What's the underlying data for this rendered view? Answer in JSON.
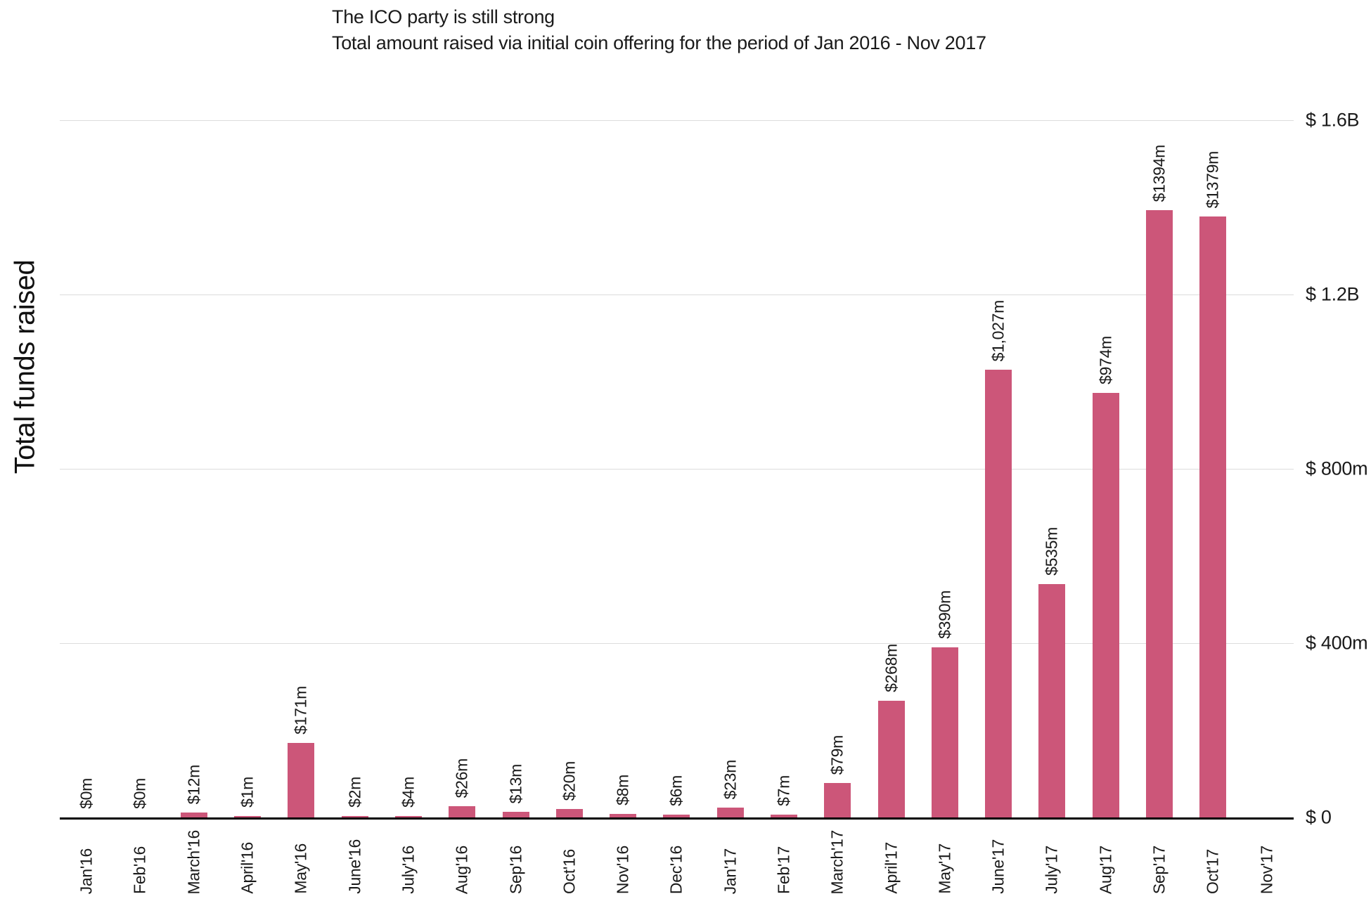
{
  "header": {
    "title": "The ICO party is still strong",
    "subtitle": "Total amount raised via initial coin offering for the period of Jan 2016 - Nov 2017"
  },
  "chart_data": {
    "type": "bar",
    "title": "The ICO party is still strong",
    "subtitle": "Total amount raised via initial coin offering for the period of Jan 2016 - Nov 2017",
    "ylabel": "Total funds raised",
    "xlabel": "",
    "unit": "USD millions",
    "categories": [
      "Jan'16",
      "Feb'16",
      "March'16",
      "April'16",
      "May'16",
      "June'16",
      "July'16",
      "Aug'16",
      "Sep'16",
      "Oct'16",
      "Nov'16",
      "Dec'16",
      "Jan'17",
      "Feb'17",
      "March'17",
      "April'17",
      "May'17",
      "June'17",
      "July'17",
      "Aug'17",
      "Sep'17",
      "Oct'17",
      "Nov'17"
    ],
    "values": [
      0,
      0,
      12,
      1,
      171,
      2,
      4,
      26,
      13,
      20,
      8,
      6,
      23,
      7,
      79,
      268,
      390,
      1027,
      535,
      974,
      1394,
      1379,
      null
    ],
    "value_labels": [
      "$0m",
      "$0m",
      "$12m",
      "$1m",
      "$171m",
      "$2m",
      "$4m",
      "$26m",
      "$13m",
      "$20m",
      "$8m",
      "$6m",
      "$23m",
      "$7m",
      "$79m",
      "$268m",
      "$390m",
      "$1,027m",
      "$535m",
      "$974m",
      "$1394m",
      "$1379m",
      ""
    ],
    "y_ticks": [
      {
        "value": 0,
        "label": "$ 0"
      },
      {
        "value": 400,
        "label": "$ 400m"
      },
      {
        "value": 800,
        "label": "$ 800m"
      },
      {
        "value": 1200,
        "label": "$ 1.2B"
      },
      {
        "value": 1600,
        "label": "$ 1.6B"
      }
    ],
    "ylim": [
      0,
      1600
    ],
    "grid": true,
    "legend": "none",
    "bar_color": "#cc5679",
    "grid_color": "#dcdcdc",
    "axis_color": "#000000"
  }
}
